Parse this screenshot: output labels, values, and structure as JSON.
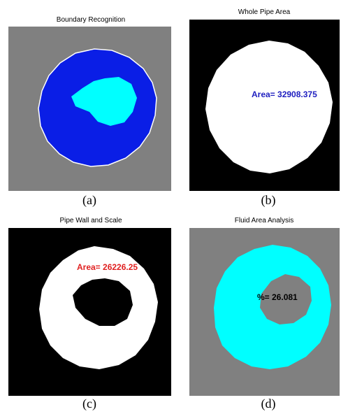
{
  "panels": [
    {
      "title": "Boundary Recognition",
      "caption": "(a)"
    },
    {
      "title": "Whole Pipe Area",
      "caption": "(b)",
      "annotation": "Area= 32908.375"
    },
    {
      "title": "Pipe Wall and Scale",
      "caption": "(c)",
      "annotation": "Area= 26226.25"
    },
    {
      "title": "Fluid Area Analysis",
      "caption": "(d)",
      "annotation": "%= 26.081"
    }
  ]
}
